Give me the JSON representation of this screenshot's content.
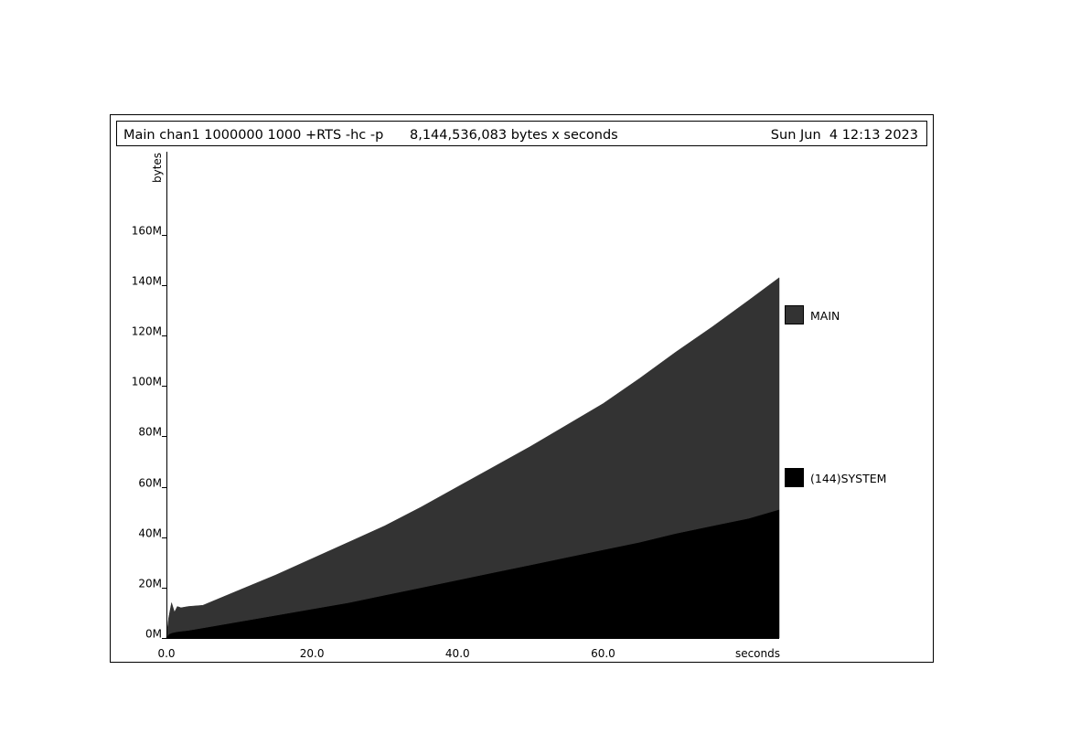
{
  "chart_data": {
    "type": "area",
    "stacked": true,
    "header": {
      "title": "Main chan1 1000000 1000 +RTS -hc -p",
      "summary": "8,144,536,083 bytes x seconds",
      "date": "Sun Jun  4 12:13 2023"
    },
    "ylabel": "bytes",
    "xlabel": "seconds",
    "xlim": [
      0,
      84.2
    ],
    "ylim": [
      0,
      193000000
    ],
    "x_ticks": [
      "0.0",
      "20.0",
      "40.0",
      "60.0"
    ],
    "x_tick_values": [
      0,
      20,
      40,
      60
    ],
    "y_ticks": [
      "0M",
      "20M",
      "40M",
      "60M",
      "80M",
      "100M",
      "120M",
      "140M",
      "160M"
    ],
    "y_tick_values": [
      0,
      20000000,
      40000000,
      60000000,
      80000000,
      100000000,
      120000000,
      140000000,
      160000000
    ],
    "x": [
      0,
      0.3,
      0.7,
      1.1,
      1.5,
      2.0,
      3,
      5,
      10,
      15,
      20,
      25,
      30,
      35,
      40,
      45,
      50,
      55,
      60,
      65,
      70,
      75,
      80,
      84.2
    ],
    "series": [
      {
        "name": "(144)SYSTEM",
        "color": "#000000",
        "values": [
          0,
          1500000,
          2000000,
          2300000,
          2500000,
          2700000,
          3000000,
          4000000,
          6500000,
          9000000,
          11500000,
          14000000,
          17000000,
          20000000,
          23000000,
          26000000,
          29000000,
          32000000,
          35000000,
          38000000,
          41500000,
          44500000,
          47500000,
          51000000
        ]
      },
      {
        "name": "MAIN",
        "color": "#333333",
        "values": [
          0,
          6500000,
          12000000,
          8000000,
          10000000,
          9300000,
          9500000,
          9000000,
          12500000,
          16000000,
          20000000,
          24000000,
          27500000,
          32000000,
          37000000,
          42000000,
          47000000,
          52500000,
          58000000,
          65000000,
          72000000,
          79000000,
          86500000,
          92000000
        ]
      }
    ],
    "legend_position": "right"
  }
}
